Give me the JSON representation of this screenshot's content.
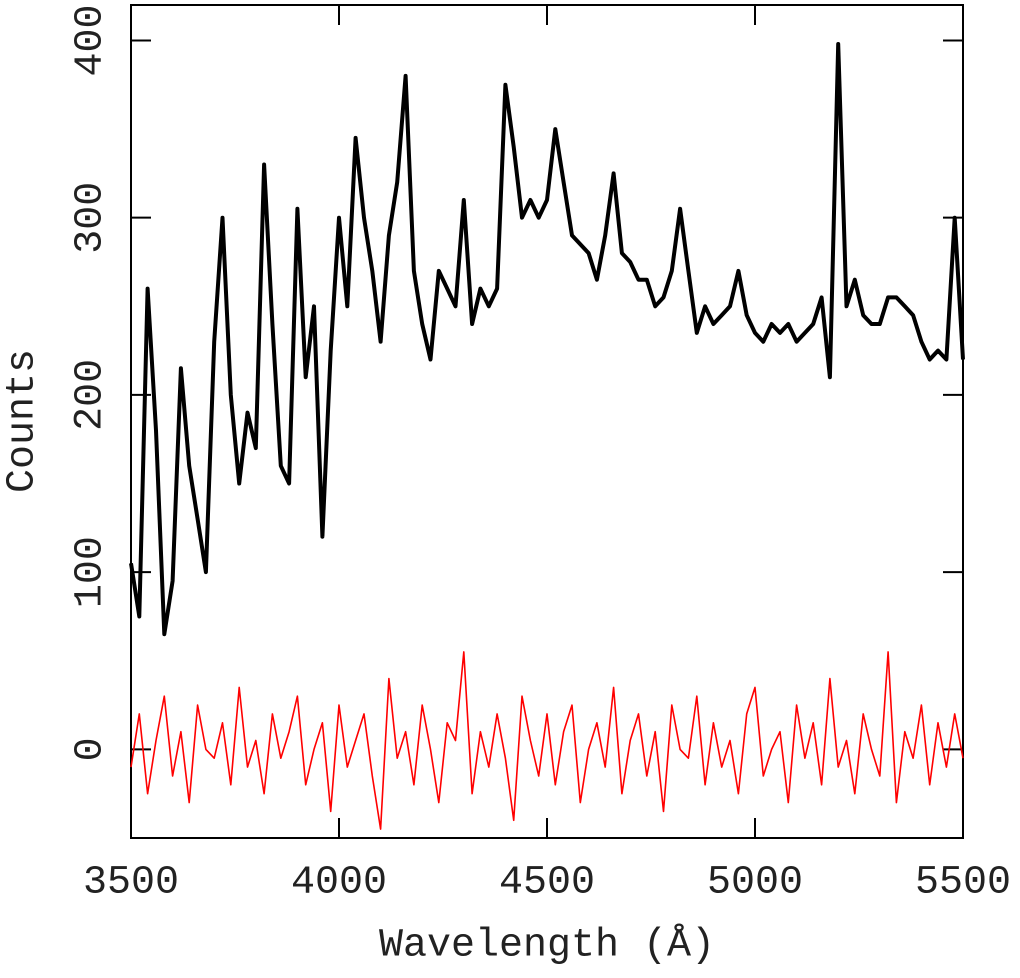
{
  "chart_data": {
    "type": "line",
    "xlabel": "Wavelength (Å)",
    "ylabel": "Counts",
    "x": [
      3500,
      3520,
      3540,
      3560,
      3580,
      3600,
      3620,
      3640,
      3660,
      3680,
      3700,
      3720,
      3740,
      3760,
      3780,
      3800,
      3820,
      3840,
      3860,
      3880,
      3900,
      3920,
      3940,
      3960,
      3980,
      4000,
      4020,
      4040,
      4060,
      4080,
      4100,
      4120,
      4140,
      4160,
      4180,
      4200,
      4220,
      4240,
      4260,
      4280,
      4300,
      4320,
      4340,
      4360,
      4380,
      4400,
      4420,
      4440,
      4460,
      4480,
      4500,
      4520,
      4540,
      4560,
      4580,
      4600,
      4620,
      4640,
      4660,
      4680,
      4700,
      4720,
      4740,
      4760,
      4780,
      4800,
      4820,
      4840,
      4860,
      4880,
      4900,
      4920,
      4940,
      4960,
      4980,
      5000,
      5020,
      5040,
      5060,
      5080,
      5100,
      5120,
      5140,
      5160,
      5180,
      5200,
      5220,
      5240,
      5260,
      5280,
      5300,
      5320,
      5340,
      5360,
      5380,
      5400,
      5420,
      5440,
      5460,
      5480,
      5500
    ],
    "series": [
      {
        "color": "#000000",
        "values": [
          105,
          75,
          260,
          180,
          65,
          95,
          215,
          160,
          130,
          100,
          230,
          300,
          200,
          150,
          190,
          170,
          330,
          240,
          160,
          150,
          305,
          210,
          250,
          120,
          225,
          300,
          250,
          345,
          300,
          270,
          230,
          290,
          320,
          380,
          270,
          240,
          220,
          270,
          260,
          250,
          310,
          240,
          260,
          250,
          260,
          375,
          340,
          300,
          310,
          300,
          310,
          350,
          320,
          290,
          285,
          280,
          265,
          290,
          325,
          280,
          275,
          265,
          265,
          250,
          255,
          270,
          305,
          270,
          235,
          250,
          240,
          245,
          250,
          270,
          245,
          235,
          230,
          240,
          235,
          240,
          230,
          235,
          240,
          255,
          210,
          398,
          250,
          265,
          245,
          240,
          240,
          255,
          255,
          250,
          245,
          230,
          220,
          225,
          220,
          300,
          220
        ]
      },
      {
        "color": "#ff0000",
        "values": [
          -10,
          20,
          -25,
          5,
          30,
          -15,
          10,
          -30,
          25,
          0,
          -5,
          15,
          -20,
          35,
          -10,
          5,
          -25,
          20,
          -5,
          10,
          30,
          -20,
          0,
          15,
          -35,
          25,
          -10,
          5,
          20,
          -15,
          -45,
          40,
          -5,
          10,
          -20,
          25,
          0,
          -30,
          15,
          5,
          55,
          -25,
          10,
          -10,
          20,
          -5,
          -40,
          30,
          5,
          -15,
          20,
          -20,
          10,
          25,
          -30,
          0,
          15,
          -10,
          35,
          -25,
          5,
          20,
          -15,
          10,
          -35,
          25,
          0,
          -5,
          30,
          -20,
          15,
          -10,
          5,
          -25,
          20,
          35,
          -15,
          0,
          10,
          -30,
          25,
          -5,
          15,
          -20,
          40,
          -10,
          5,
          -25,
          20,
          0,
          -15,
          55,
          -30,
          10,
          -5,
          25,
          -20,
          15,
          -10,
          20,
          -5
        ]
      }
    ],
    "xlim": [
      3500,
      5500
    ],
    "xticks": [
      3500,
      4000,
      4500,
      5000,
      5500
    ],
    "ylim": [
      -50,
      420
    ],
    "yticks": [
      0,
      100,
      200,
      300,
      400
    ]
  }
}
